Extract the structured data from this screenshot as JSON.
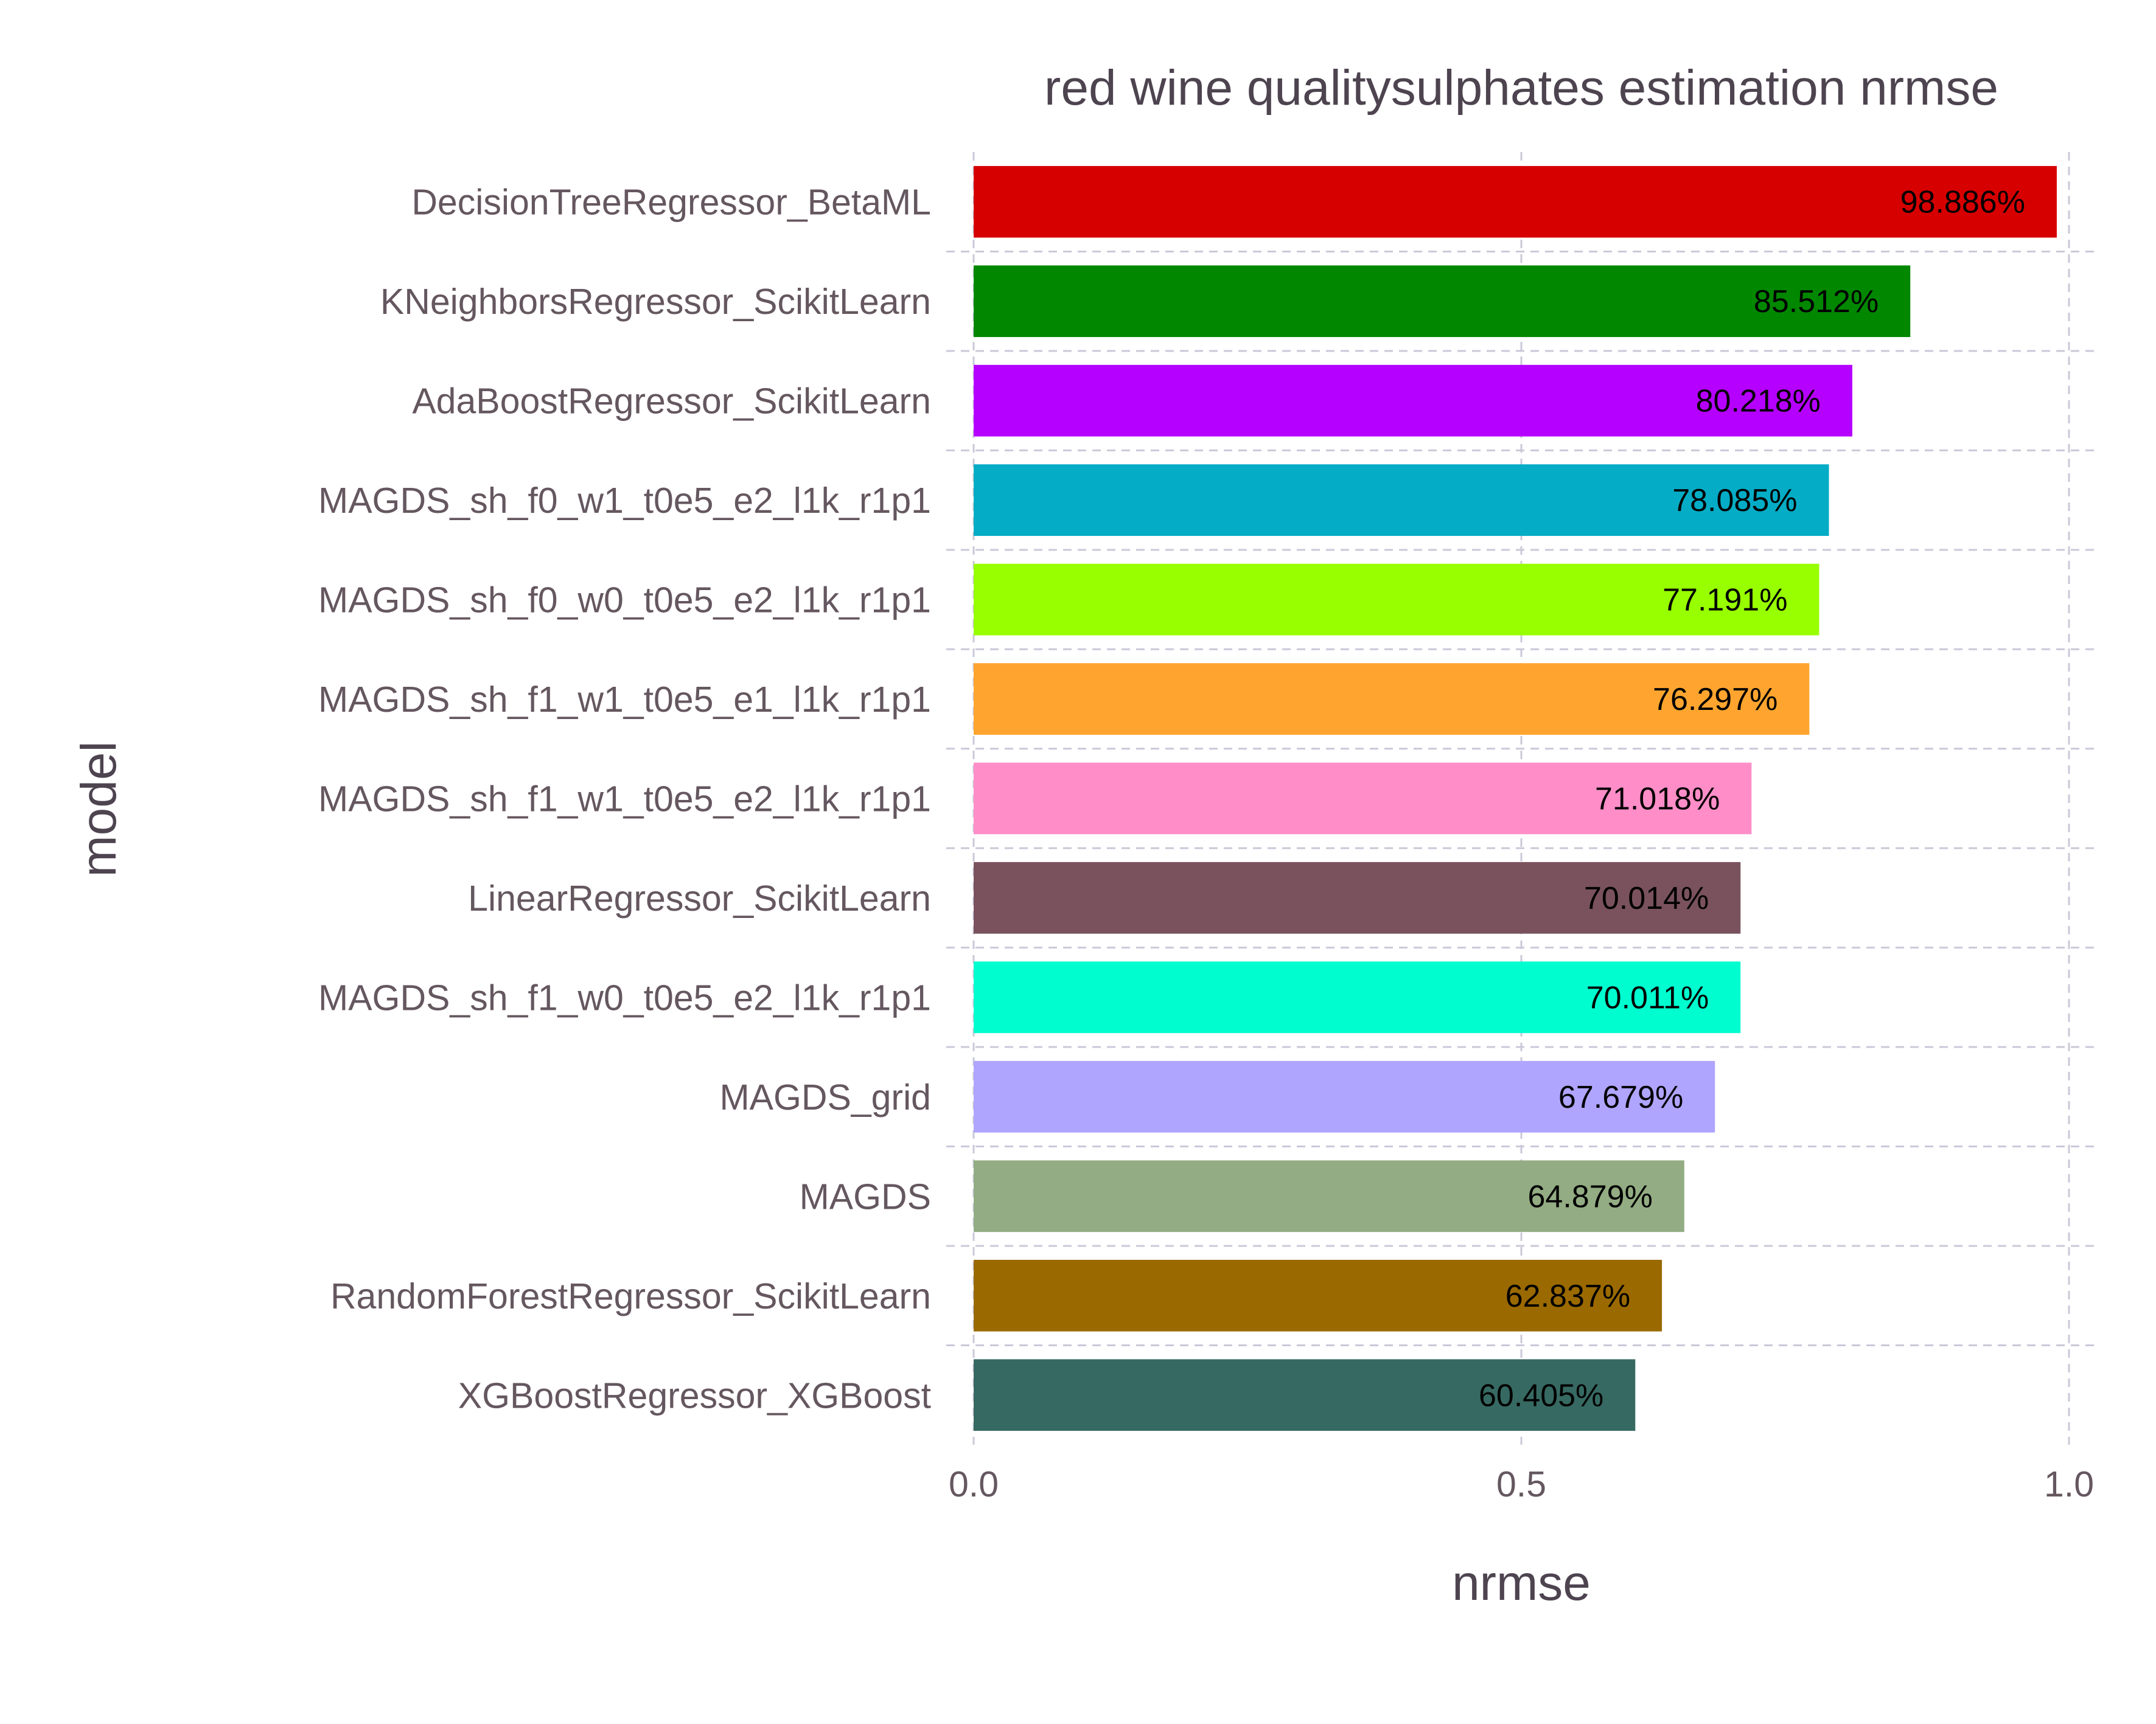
{
  "chart_data": {
    "type": "bar",
    "orientation": "horizontal",
    "title": "red wine qualitysulphates estimation nrmse",
    "xlabel": "nrmse",
    "ylabel": "model",
    "xlim": [
      0,
      1
    ],
    "x_ticks": [
      "0.0",
      "0.5",
      "1.0"
    ],
    "x_tick_values": [
      0,
      0.5,
      1.0
    ],
    "grid": true,
    "legend": "none",
    "bars": [
      {
        "category": "DecisionTreeRegressor_BetaML",
        "value": 0.98886,
        "label": "98.886%",
        "color": "#d60000"
      },
      {
        "category": "KNeighborsRegressor_ScikitLearn",
        "value": 0.85512,
        "label": "85.512%",
        "color": "#018700"
      },
      {
        "category": "AdaBoostRegressor_ScikitLearn",
        "value": 0.80218,
        "label": "80.218%",
        "color": "#b500ff"
      },
      {
        "category": "MAGDS_sh_f0_w1_t0e5_e2_l1k_r1p1",
        "value": 0.78085,
        "label": "78.085%",
        "color": "#05acc6"
      },
      {
        "category": "MAGDS_sh_f0_w0_t0e5_e2_l1k_r1p1",
        "value": 0.77191,
        "label": "77.191%",
        "color": "#97ff00"
      },
      {
        "category": "MAGDS_sh_f1_w1_t0e5_e1_l1k_r1p1",
        "value": 0.76297,
        "label": "76.297%",
        "color": "#ffa52f"
      },
      {
        "category": "MAGDS_sh_f1_w1_t0e5_e2_l1k_r1p1",
        "value": 0.71018,
        "label": "71.018%",
        "color": "#ff8ec8"
      },
      {
        "category": "LinearRegressor_ScikitLearn",
        "value": 0.70014,
        "label": "70.014%",
        "color": "#79525e"
      },
      {
        "category": "MAGDS_sh_f1_w0_t0e5_e2_l1k_r1p1",
        "value": 0.70011,
        "label": "70.011%",
        "color": "#00fdcf"
      },
      {
        "category": "MAGDS_grid",
        "value": 0.67679,
        "label": "67.679%",
        "color": "#afa5ff"
      },
      {
        "category": "MAGDS",
        "value": 0.64879,
        "label": "64.879%",
        "color": "#93ac83"
      },
      {
        "category": "RandomForestRegressor_ScikitLearn",
        "value": 0.62837,
        "label": "62.837%",
        "color": "#9a6900"
      },
      {
        "category": "XGBoostRegressor_XGBoost",
        "value": 0.60405,
        "label": "60.405%",
        "color": "#366962"
      }
    ]
  }
}
